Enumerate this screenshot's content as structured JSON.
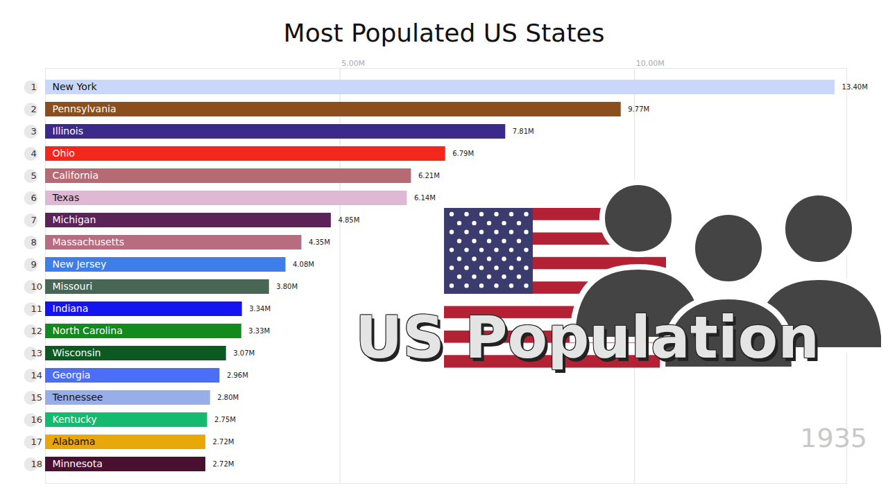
{
  "chart_data": {
    "type": "bar",
    "orientation": "horizontal",
    "title": "Most Populated US States",
    "categories": [
      "New York",
      "Pennsylvania",
      "Illinois",
      "Ohio",
      "California",
      "Texas",
      "Michigan",
      "Massachusetts",
      "New Jersey",
      "Missouri",
      "Indiana",
      "North Carolina",
      "Wisconsin",
      "Georgia",
      "Tennessee",
      "Kentucky",
      "Alabama",
      "Minnesota"
    ],
    "ranks": [
      1,
      2,
      3,
      4,
      5,
      6,
      7,
      8,
      9,
      10,
      11,
      12,
      13,
      14,
      15,
      16,
      17,
      18
    ],
    "values": [
      13.4,
      9.77,
      7.81,
      6.79,
      6.21,
      6.14,
      4.85,
      4.35,
      4.08,
      3.8,
      3.34,
      3.33,
      3.07,
      2.96,
      2.8,
      2.75,
      2.72,
      2.72
    ],
    "value_labels": [
      "13.40M",
      "9.77M",
      "7.81M",
      "6.79M",
      "6.21M",
      "6.14M",
      "4.85M",
      "4.35M",
      "4.08M",
      "3.80M",
      "3.34M",
      "3.33M",
      "3.07M",
      "2.96M",
      "2.80M",
      "2.75M",
      "2.72M",
      "2.72M"
    ],
    "colors": [
      "#c9d7fb",
      "#8b4f1d",
      "#3b2a8a",
      "#f5261b",
      "#b56a74",
      "#dfb8d3",
      "#5c2359",
      "#b86c7f",
      "#3e7ee8",
      "#476653",
      "#1414f0",
      "#128a1e",
      "#0a5a22",
      "#4c6ef5",
      "#98aee8",
      "#14bb6e",
      "#e8a80a",
      "#4a1030"
    ],
    "xlim": [
      0,
      13.6
    ],
    "xticks": [
      {
        "value": 5,
        "label": "5.00M"
      },
      {
        "value": 10,
        "label": "10.00M"
      }
    ],
    "grid": true,
    "data_labels": true,
    "annotations": [
      "1935",
      "US Population"
    ]
  }
}
